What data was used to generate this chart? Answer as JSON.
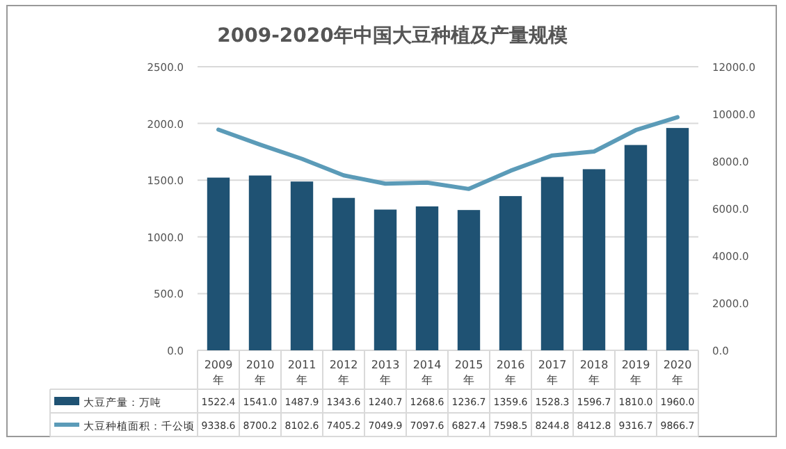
{
  "chart_data": {
    "type": "bar",
    "title": "2009-2020年中国大豆种植及产量规模",
    "categories": [
      "2009年",
      "2010年",
      "2011年",
      "2012年",
      "2013年",
      "2014年",
      "2015年",
      "2016年",
      "2017年",
      "2018年",
      "2019年",
      "2020年"
    ],
    "series": [
      {
        "name": "大豆产量：万吨",
        "color": "#1f5273",
        "values": [
          1522.4,
          1541.0,
          1487.9,
          1343.6,
          1240.7,
          1268.6,
          1236.7,
          1359.6,
          1528.3,
          1596.7,
          1810.0,
          1960.0
        ],
        "value_labels": [
          "1522.4",
          "1541.0",
          "1487.9",
          "1343.6",
          "1240.7",
          "1268.6",
          "1236.7",
          "1359.6",
          "1528.3",
          "1596.7",
          "1810.0",
          "1960.0"
        ]
      },
      {
        "name": "大豆种植面积：千公顷",
        "type": "line",
        "axis": "y2",
        "color": "#5b9bb8",
        "values": [
          9338.6,
          8700.2,
          8102.6,
          7405.2,
          7049.9,
          7097.6,
          6827.4,
          7598.5,
          8244.8,
          8412.8,
          9316.7,
          9866.7
        ],
        "value_labels": [
          "9338.6",
          "8700.2",
          "8102.6",
          "7405.2",
          "7049.9",
          "7097.6",
          "6827.4",
          "7598.5",
          "8244.8",
          "8412.8",
          "9316.7",
          "9866.7"
        ]
      }
    ],
    "ylim": [
      0,
      2500
    ],
    "yticks": [
      {
        "value": 0,
        "label": "0.0"
      },
      {
        "value": 500,
        "label": "500.0"
      },
      {
        "value": 1000,
        "label": "1000.0"
      },
      {
        "value": 1500,
        "label": "1500.0"
      },
      {
        "value": 2000,
        "label": "2000.0"
      },
      {
        "value": 2500,
        "label": "2500.0"
      }
    ],
    "y2lim": [
      0,
      12000
    ],
    "y2ticks": [
      {
        "value": 0,
        "label": "0.0"
      },
      {
        "value": 2000,
        "label": "2000.0"
      },
      {
        "value": 4000,
        "label": "4000.0"
      },
      {
        "value": 6000,
        "label": "6000.0"
      },
      {
        "value": 8000,
        "label": "8000.0"
      },
      {
        "value": 10000,
        "label": "10000.0"
      },
      {
        "value": 12000,
        "label": "12000.0"
      }
    ],
    "grid": "y",
    "legend": "bottom"
  }
}
